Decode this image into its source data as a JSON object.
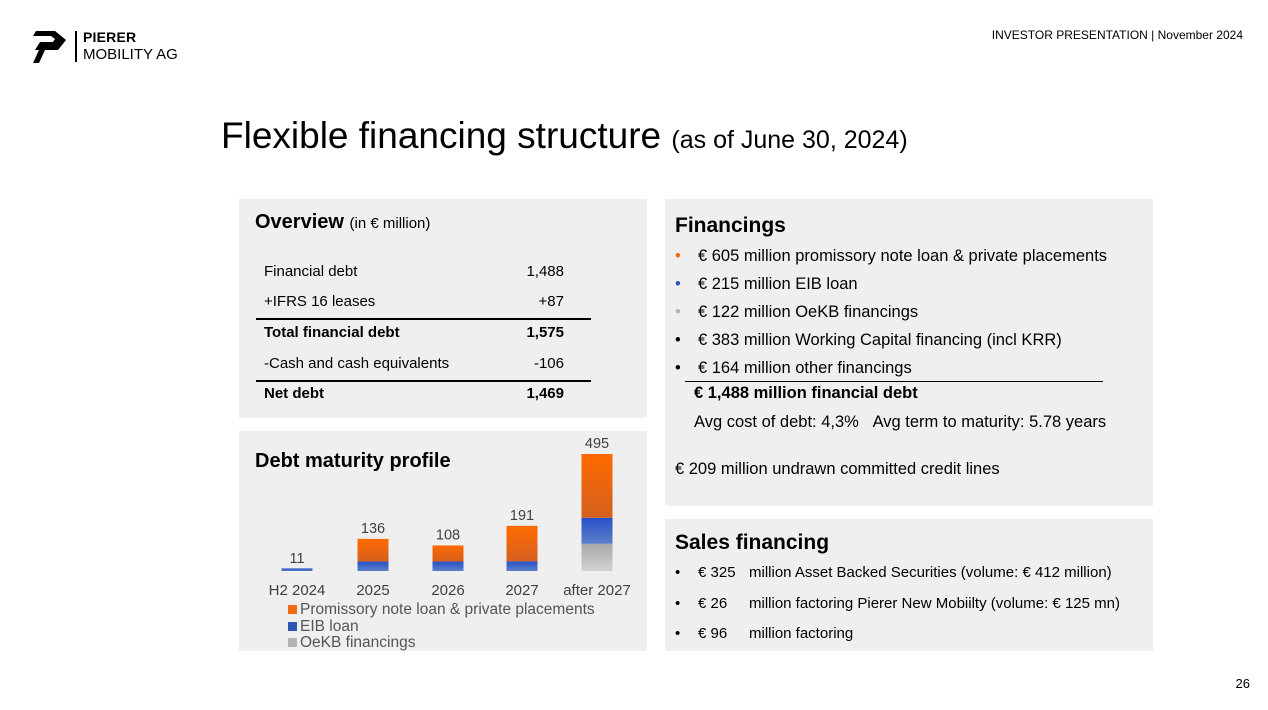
{
  "header": {
    "logo_line1": "PIERER",
    "logo_line2": "MOBILITY AG",
    "presentation": "INVESTOR PRESENTATION | November 2024"
  },
  "title": {
    "main": "Flexible financing structure",
    "sub": "(as of June 30, 2024)"
  },
  "overview": {
    "title": "Overview",
    "unit": "(in € million)",
    "rows": [
      {
        "label": "Financial debt",
        "value": "1,488"
      },
      {
        "label": "+IFRS 16 leases",
        "value": "+87"
      },
      {
        "label": "Total financial debt",
        "value": "1,575"
      },
      {
        "label": "-Cash and cash equivalents",
        "value": "-106"
      },
      {
        "label": "Net debt",
        "value": "1,469"
      }
    ]
  },
  "maturity": {
    "title": "Debt maturity profile",
    "legend": [
      "Promissory note loan & private placements",
      "EIB loan",
      "OeKB financings"
    ]
  },
  "chart_data": {
    "type": "bar",
    "stacked": true,
    "title": "Debt maturity profile",
    "categories": [
      "H2 2024",
      "2025",
      "2026",
      "2027",
      "after 2027"
    ],
    "totals": [
      11,
      136,
      108,
      191,
      495
    ],
    "series": [
      {
        "name": "Promissory note loan & private placements",
        "color": "#f26b10",
        "values": [
          0,
          96,
          68,
          150,
          270
        ]
      },
      {
        "name": "EIB loan",
        "color": "#2e54b6",
        "values": [
          11,
          40,
          40,
          41,
          110
        ]
      },
      {
        "name": "OeKB financings",
        "color": "#b3b3b3",
        "values": [
          0,
          0,
          0,
          0,
          115
        ]
      }
    ],
    "legend_position": "bottom-left",
    "grid": false
  },
  "financings": {
    "title": "Financings",
    "bullet_colors": [
      "#f26b10",
      "#2e54b6",
      "#b3b3b3",
      "#000000",
      "#000000"
    ],
    "items": [
      "€ 605 million promissory note loan & private placements",
      "€ 215 million EIB loan",
      "€ 122 million OeKB financings",
      "€ 383 million Working Capital financing (incl KRR)",
      "€ 164 million other financings"
    ],
    "total": "€ 1,488 million financial debt",
    "avg_cost": "Avg cost of debt: 4,3%",
    "avg_term": "Avg term to maturity: 5.78 years",
    "undrawn": "€ 209 million undrawn committed credit lines"
  },
  "sales": {
    "title": "Sales financing",
    "items": [
      {
        "amount": "€ 325",
        "text": "million Asset Backed Securities (volume: € 412 million)"
      },
      {
        "amount": "€ 26",
        "text": "million factoring Pierer New Mobiilty (volume: € 125 mn)"
      },
      {
        "amount": "€ 96",
        "text": "million factoring"
      }
    ]
  },
  "page_number": "26"
}
